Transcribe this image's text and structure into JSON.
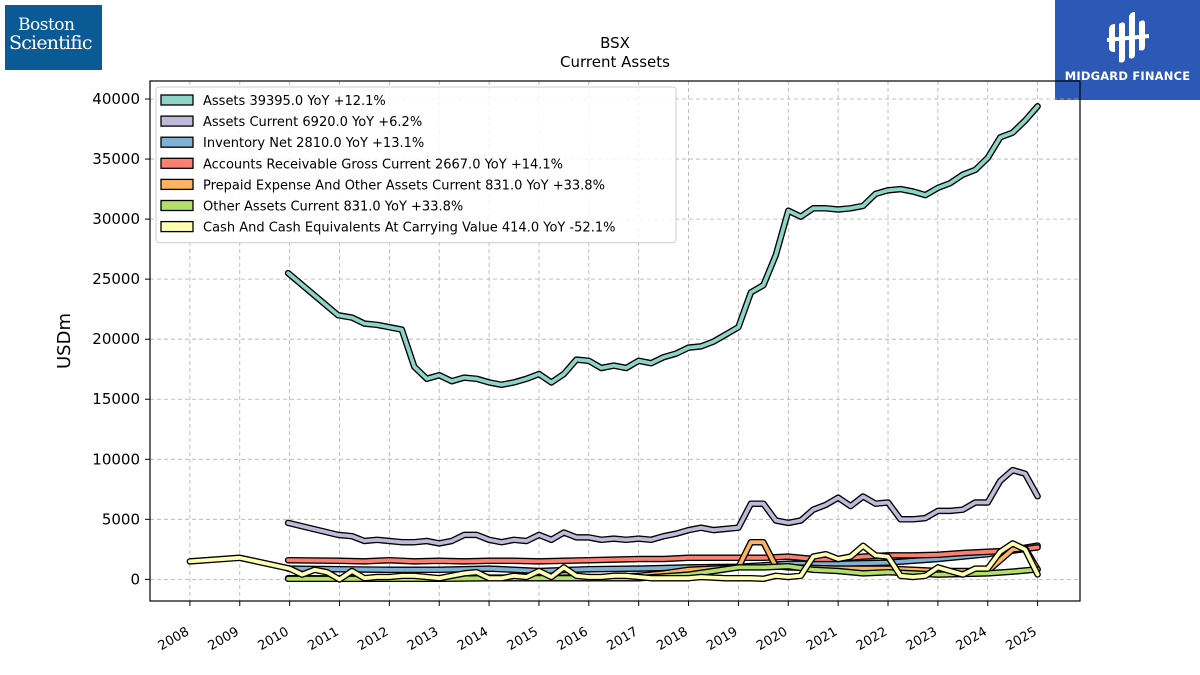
{
  "brand_left": {
    "line1": "Boston",
    "line2": "Scientific",
    "bg": "#0a5a96"
  },
  "brand_right": {
    "name": "MIDGARD FINANCE",
    "bg": "#2c59b6"
  },
  "chart_data": {
    "type": "line",
    "title": "BSX",
    "subtitle": "Current  Assets",
    "ylabel": "USDm",
    "xlabel": "",
    "ylim": [
      -1800,
      41500
    ],
    "xlim": [
      2007.2,
      2025.85
    ],
    "yticks": [
      0,
      5000,
      10000,
      15000,
      20000,
      25000,
      30000,
      35000,
      40000
    ],
    "xticks": [
      "2008",
      "2009",
      "2010",
      "2011",
      "2012",
      "2013",
      "2014",
      "2015",
      "2016",
      "2017",
      "2018",
      "2019",
      "2020",
      "2021",
      "2022",
      "2023",
      "2024",
      "2025"
    ],
    "grid": true,
    "legend_position": "upper-left",
    "series": [
      {
        "name": "Assets  39395.0 YoY +12.1%",
        "color": "#8dd3c7",
        "x": [
          2009.97,
          2010.97,
          2011.25,
          2011.5,
          2011.75,
          2012.0,
          2012.25,
          2012.5,
          2012.75,
          2013.0,
          2013.25,
          2013.5,
          2013.75,
          2014.0,
          2014.25,
          2014.5,
          2014.75,
          2015.0,
          2015.25,
          2015.5,
          2015.75,
          2016.0,
          2016.25,
          2016.5,
          2016.75,
          2017.0,
          2017.25,
          2017.5,
          2017.75,
          2018.0,
          2018.25,
          2018.5,
          2018.75,
          2019.0,
          2019.25,
          2019.5,
          2019.75,
          2020.0,
          2020.25,
          2020.5,
          2020.75,
          2021.0,
          2021.25,
          2021.5,
          2021.75,
          2022.0,
          2022.25,
          2022.5,
          2022.75,
          2023.0,
          2023.25,
          2023.5,
          2023.75,
          2024.0,
          2024.25,
          2024.5,
          2024.75,
          2025.0
        ],
        "y": [
          25500,
          22000,
          21800,
          21300,
          21200,
          21000,
          20800,
          17700,
          16700,
          17000,
          16500,
          16800,
          16700,
          16400,
          16200,
          16400,
          16700,
          17100,
          16400,
          17100,
          18300,
          18200,
          17600,
          17800,
          17600,
          18200,
          18000,
          18500,
          18800,
          19300,
          19400,
          19800,
          20400,
          21000,
          23900,
          24500,
          27000,
          30700,
          30200,
          30900,
          30900,
          30800,
          30900,
          31100,
          32100,
          32400,
          32500,
          32300,
          32000,
          32600,
          33000,
          33700,
          34100,
          35100,
          36800,
          37200,
          38200,
          39395
        ]
      },
      {
        "name": "Assets Current  6920.0 YoY +6.2%",
        "color": "#bebada",
        "x": [
          2009.97,
          2010.97,
          2011.25,
          2011.5,
          2011.75,
          2012.0,
          2012.25,
          2012.5,
          2012.75,
          2013.0,
          2013.25,
          2013.5,
          2013.75,
          2014.0,
          2014.25,
          2014.5,
          2014.75,
          2015.0,
          2015.25,
          2015.5,
          2015.75,
          2016.0,
          2016.25,
          2016.5,
          2016.75,
          2017.0,
          2017.25,
          2017.5,
          2017.75,
          2018.0,
          2018.25,
          2018.5,
          2018.75,
          2019.0,
          2019.25,
          2019.5,
          2019.75,
          2020.0,
          2020.25,
          2020.5,
          2020.75,
          2021.0,
          2021.25,
          2021.5,
          2021.75,
          2022.0,
          2022.25,
          2022.5,
          2022.75,
          2023.0,
          2023.25,
          2023.5,
          2023.75,
          2024.0,
          2024.25,
          2024.5,
          2024.75,
          2025.0
        ],
        "y": [
          4700,
          3700,
          3600,
          3200,
          3300,
          3200,
          3100,
          3100,
          3200,
          3000,
          3200,
          3700,
          3700,
          3300,
          3100,
          3300,
          3200,
          3700,
          3300,
          3900,
          3500,
          3500,
          3300,
          3400,
          3300,
          3400,
          3300,
          3600,
          3800,
          4100,
          4300,
          4100,
          4200,
          4300,
          6300,
          6300,
          4900,
          4700,
          4900,
          5800,
          6200,
          6800,
          6100,
          6900,
          6300,
          6400,
          5000,
          5000,
          5100,
          5700,
          5700,
          5800,
          6400,
          6400,
          8200,
          9100,
          8800,
          6920
        ]
      },
      {
        "name": "Inventory Net  2810.0 YoY +13.1%",
        "color": "#80b1d3",
        "x": [
          2009.97,
          2011.0,
          2012.0,
          2013.0,
          2014.0,
          2015.0,
          2016.0,
          2017.0,
          2018.0,
          2019.0,
          2020.0,
          2021.0,
          2022.0,
          2023.0,
          2024.0,
          2025.0
        ],
        "y": [
          900,
          850,
          800,
          800,
          900,
          700,
          850,
          900,
          1000,
          1050,
          1300,
          1300,
          1400,
          1700,
          2100,
          2810
        ]
      },
      {
        "name": "Accounts Receivable Gross Current  2667.0 YoY +14.1%",
        "color": "#fb8072",
        "x": [
          2009.97,
          2011.0,
          2011.5,
          2012.0,
          2012.5,
          2013.0,
          2013.5,
          2014.0,
          2014.5,
          2015.0,
          2015.5,
          2016.0,
          2016.5,
          2017.0,
          2017.5,
          2018.0,
          2018.5,
          2019.0,
          2019.5,
          2020.0,
          2020.5,
          2021.0,
          2021.5,
          2022.0,
          2022.5,
          2023.0,
          2023.5,
          2024.0,
          2024.5,
          2025.0
        ],
        "y": [
          1600,
          1550,
          1500,
          1600,
          1500,
          1550,
          1500,
          1550,
          1550,
          1500,
          1550,
          1600,
          1650,
          1700,
          1700,
          1800,
          1800,
          1800,
          1800,
          1900,
          1700,
          1700,
          1900,
          2000,
          2000,
          2050,
          2200,
          2300,
          2400,
          2667
        ]
      },
      {
        "name": "Prepaid Expense And Other Assets Current  831.0 YoY +33.8%",
        "color": "#fdb462",
        "x": [
          2009.97,
          2011.0,
          2012.0,
          2013.0,
          2014.0,
          2015.0,
          2016.0,
          2016.5,
          2017.0,
          2017.5,
          2018.0,
          2018.5,
          2019.0,
          2019.25,
          2019.5,
          2019.75,
          2020.0,
          2021.0,
          2022.0,
          2023.0,
          2024.0,
          2024.5,
          2024.75,
          2025.0
        ],
        "y": [
          100,
          80,
          80,
          100,
          150,
          150,
          150,
          200,
          300,
          500,
          800,
          900,
          1000,
          3100,
          3100,
          1100,
          1000,
          900,
          900,
          700,
          700,
          2500,
          2600,
          831
        ]
      },
      {
        "name": "Other Assets Current  831.0 YoY +33.8%",
        "color": "#b3de69",
        "x": [
          2009.97,
          2011.0,
          2012.0,
          2013.0,
          2014.0,
          2015.0,
          2016.0,
          2017.0,
          2018.0,
          2018.5,
          2019.0,
          2019.5,
          2020.0,
          2020.5,
          2021.0,
          2021.5,
          2022.0,
          2022.5,
          2023.0,
          2023.5,
          2024.0,
          2024.5,
          2025.0
        ],
        "y": [
          50,
          50,
          50,
          50,
          100,
          100,
          100,
          100,
          400,
          700,
          1000,
          1000,
          1100,
          800,
          700,
          500,
          600,
          500,
          400,
          450,
          500,
          650,
          831
        ]
      },
      {
        "name": "Cash And Cash Equivalents At Carrying Value  414.0 YoY -52.1%",
        "color": "#ffffb3",
        "x": [
          2008.0,
          2009.0,
          2010.0,
          2010.25,
          2010.5,
          2010.75,
          2011.0,
          2011.25,
          2011.5,
          2011.75,
          2012.0,
          2012.25,
          2012.5,
          2012.75,
          2013.0,
          2013.25,
          2013.5,
          2013.75,
          2014.0,
          2014.25,
          2014.5,
          2014.75,
          2015.0,
          2015.25,
          2015.5,
          2015.75,
          2016.0,
          2016.25,
          2016.5,
          2016.75,
          2017.0,
          2017.25,
          2017.5,
          2017.75,
          2018.0,
          2018.25,
          2018.5,
          2018.75,
          2019.0,
          2019.25,
          2019.5,
          2019.75,
          2020.0,
          2020.25,
          2020.5,
          2020.75,
          2021.0,
          2021.25,
          2021.5,
          2021.75,
          2022.0,
          2022.25,
          2022.5,
          2022.75,
          2023.0,
          2023.25,
          2023.5,
          2023.75,
          2024.0,
          2024.25,
          2024.5,
          2024.75,
          2025.0
        ],
        "y": [
          1500,
          1800,
          900,
          400,
          800,
          600,
          0,
          700,
          100,
          200,
          200,
          300,
          300,
          200,
          100,
          300,
          500,
          600,
          100,
          100,
          300,
          200,
          700,
          200,
          1000,
          300,
          200,
          200,
          300,
          300,
          200,
          100,
          100,
          100,
          100,
          200,
          150,
          100,
          100,
          100,
          50,
          300,
          200,
          300,
          1900,
          2100,
          1700,
          1900,
          2800,
          2000,
          1900,
          300,
          200,
          300,
          1000,
          700,
          400,
          900,
          900,
          2300,
          3000,
          2500,
          414
        ]
      }
    ]
  }
}
